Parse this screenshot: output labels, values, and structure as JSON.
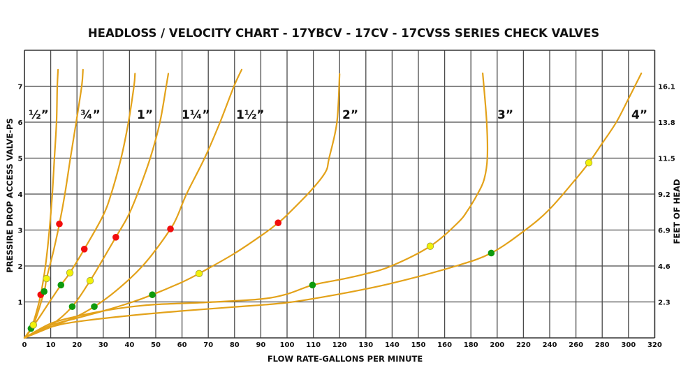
{
  "chart_data": {
    "type": "line",
    "title": "HEADLOSS / VELOCITY CHART - 17YBCV - 17CV - 17CVSS SERIES CHECK VALVES",
    "xlabel": "FLOW RATE-GALLONS PER MINUTE",
    "ylabel": "PRESSIRE DROP ACCESS VALVE-PS",
    "ylabel_right": "FEET OF HEAD",
    "x_ticks": [
      0,
      10,
      20,
      30,
      40,
      50,
      60,
      70,
      80,
      90,
      100,
      110,
      120,
      130,
      140,
      150,
      160,
      180,
      200,
      220,
      240,
      260,
      280,
      300,
      320
    ],
    "y_ticks": [
      1,
      2,
      3,
      4,
      5,
      6,
      7
    ],
    "y_right_ticks": [
      "2.3",
      "4.6",
      "6.9",
      "9.2",
      "11.5",
      "13.8",
      "16.1"
    ],
    "xlim": [
      0,
      320
    ],
    "ylim": [
      0,
      8
    ],
    "grid": true,
    "line_color": "#E3A21A",
    "marker_colors": {
      "green": "#0E9A0E",
      "yellow": "#F2F20A",
      "red": "#F20D0D"
    },
    "series": [
      {
        "name": "½”",
        "points": [
          [
            0,
            0
          ],
          [
            2.5,
            0.26
          ],
          [
            4.5,
            0.7
          ],
          [
            6.2,
            1.2
          ],
          [
            8,
            2
          ],
          [
            9.5,
            3
          ],
          [
            10.6,
            4
          ],
          [
            11.4,
            5
          ],
          [
            12.2,
            6
          ],
          [
            12.5,
            7
          ],
          [
            12.8,
            7.46
          ]
        ],
        "markers": [
          {
            "x": 2.5,
            "y": 0.26,
            "color": "green"
          },
          {
            "x": 6.2,
            "y": 1.2,
            "color": "red"
          }
        ]
      },
      {
        "name": "¾”",
        "points": [
          [
            0,
            0
          ],
          [
            3.4,
            0.36
          ],
          [
            7.5,
            1.29
          ],
          [
            8.4,
            1.65
          ],
          [
            11,
            2.4
          ],
          [
            13.3,
            3.17
          ],
          [
            15.4,
            4
          ],
          [
            17.5,
            5
          ],
          [
            19.7,
            6
          ],
          [
            21.8,
            7
          ],
          [
            22.3,
            7.46
          ]
        ],
        "markers": [
          {
            "x": 3.4,
            "y": 0.36,
            "color": "yellow"
          },
          {
            "x": 7.5,
            "y": 1.29,
            "color": "green"
          },
          {
            "x": 8.4,
            "y": 1.65,
            "color": "yellow"
          },
          {
            "x": 13.3,
            "y": 3.17,
            "color": "red"
          }
        ]
      },
      {
        "name": "1”",
        "points": [
          [
            0,
            0
          ],
          [
            5,
            0.5
          ],
          [
            10,
            1.05
          ],
          [
            13.9,
            1.47
          ],
          [
            17.3,
            1.81
          ],
          [
            22.8,
            2.47
          ],
          [
            29.8,
            3.38
          ],
          [
            33,
            4
          ],
          [
            36.8,
            5
          ],
          [
            39.6,
            6
          ],
          [
            41.7,
            7
          ],
          [
            42.1,
            7.35
          ]
        ],
        "markers": [
          {
            "x": 13.9,
            "y": 1.47,
            "color": "green"
          },
          {
            "x": 17.3,
            "y": 1.81,
            "color": "yellow"
          },
          {
            "x": 22.8,
            "y": 2.47,
            "color": "red"
          }
        ]
      },
      {
        "name": "1¼”",
        "points": [
          [
            0,
            0
          ],
          [
            10,
            0.35
          ],
          [
            18.2,
            0.87
          ],
          [
            25,
            1.59
          ],
          [
            30,
            2.2
          ],
          [
            34.8,
            2.8
          ],
          [
            39.4,
            3.38
          ],
          [
            43,
            4
          ],
          [
            47.9,
            5
          ],
          [
            51.6,
            6
          ],
          [
            54,
            7
          ],
          [
            54.8,
            7.35
          ]
        ],
        "markers": [
          {
            "x": 18.2,
            "y": 0.87,
            "color": "green"
          },
          {
            "x": 25,
            "y": 1.59,
            "color": "yellow"
          },
          {
            "x": 34.8,
            "y": 2.8,
            "color": "red"
          }
        ]
      },
      {
        "name": "1½”",
        "points": [
          [
            0,
            0
          ],
          [
            10,
            0.3
          ],
          [
            20,
            0.6
          ],
          [
            26.6,
            0.87
          ],
          [
            33,
            1.2
          ],
          [
            39.9,
            1.63
          ],
          [
            45.2,
            2.02
          ],
          [
            50,
            2.45
          ],
          [
            55.6,
            3.03
          ],
          [
            58.2,
            3.38
          ],
          [
            61.7,
            4
          ],
          [
            68.6,
            5
          ],
          [
            74.5,
            6
          ],
          [
            79.8,
            7
          ],
          [
            82.7,
            7.46
          ]
        ],
        "markers": [
          {
            "x": 26.6,
            "y": 0.87,
            "color": "green"
          },
          {
            "x": 55.6,
            "y": 3.03,
            "color": "red"
          }
        ]
      },
      {
        "name": "2”",
        "points": [
          [
            0,
            0
          ],
          [
            10,
            0.35
          ],
          [
            20,
            0.55
          ],
          [
            30,
            0.75
          ],
          [
            40,
            0.97
          ],
          [
            48.7,
            1.2
          ],
          [
            60,
            1.55
          ],
          [
            66.5,
            1.79
          ],
          [
            80,
            2.35
          ],
          [
            91.8,
            2.93
          ],
          [
            96.6,
            3.2
          ],
          [
            100,
            3.42
          ],
          [
            109,
            4.09
          ],
          [
            114.6,
            4.61
          ],
          [
            116,
            5
          ],
          [
            119,
            6
          ],
          [
            120,
            7.34
          ]
        ],
        "markers": [
          {
            "x": 48.7,
            "y": 1.2,
            "color": "green"
          },
          {
            "x": 66.5,
            "y": 1.79,
            "color": "yellow"
          },
          {
            "x": 96.6,
            "y": 3.2,
            "color": "red"
          }
        ]
      },
      {
        "name": "3”",
        "points": [
          [
            0,
            0
          ],
          [
            10,
            0.4
          ],
          [
            20,
            0.6
          ],
          [
            30,
            0.75
          ],
          [
            40,
            0.86
          ],
          [
            50,
            0.93
          ],
          [
            70,
            0.99
          ],
          [
            90,
            1.08
          ],
          [
            100,
            1.22
          ],
          [
            109.7,
            1.47
          ],
          [
            120,
            1.62
          ],
          [
            129.3,
            1.77
          ],
          [
            139.4,
            1.99
          ],
          [
            154.5,
            2.55
          ],
          [
            170,
            3.2
          ],
          [
            178,
            3.57
          ],
          [
            185,
            4.0
          ],
          [
            190,
            4.4
          ],
          [
            192.5,
            5
          ],
          [
            192,
            6
          ],
          [
            189,
            7.36
          ]
        ],
        "markers": [
          {
            "x": 109.7,
            "y": 1.47,
            "color": "green"
          },
          {
            "x": 154.5,
            "y": 2.55,
            "color": "yellow"
          }
        ]
      },
      {
        "name": "4”",
        "points": [
          [
            0,
            0
          ],
          [
            10,
            0.3
          ],
          [
            20,
            0.45
          ],
          [
            40,
            0.62
          ],
          [
            60,
            0.75
          ],
          [
            80,
            0.86
          ],
          [
            100,
            0.98
          ],
          [
            120,
            1.22
          ],
          [
            139.4,
            1.51
          ],
          [
            167.8,
            1.99
          ],
          [
            195.5,
            2.36
          ],
          [
            221.4,
            3.0
          ],
          [
            239.7,
            3.57
          ],
          [
            259,
            4.38
          ],
          [
            269.8,
            4.87
          ],
          [
            279.4,
            5.38
          ],
          [
            290.6,
            5.99
          ],
          [
            300,
            6.65
          ],
          [
            309.8,
            7.36
          ]
        ],
        "markers": [
          {
            "x": 195.5,
            "y": 2.36,
            "color": "green"
          },
          {
            "x": 269.8,
            "y": 4.87,
            "color": "yellow"
          }
        ]
      }
    ]
  }
}
